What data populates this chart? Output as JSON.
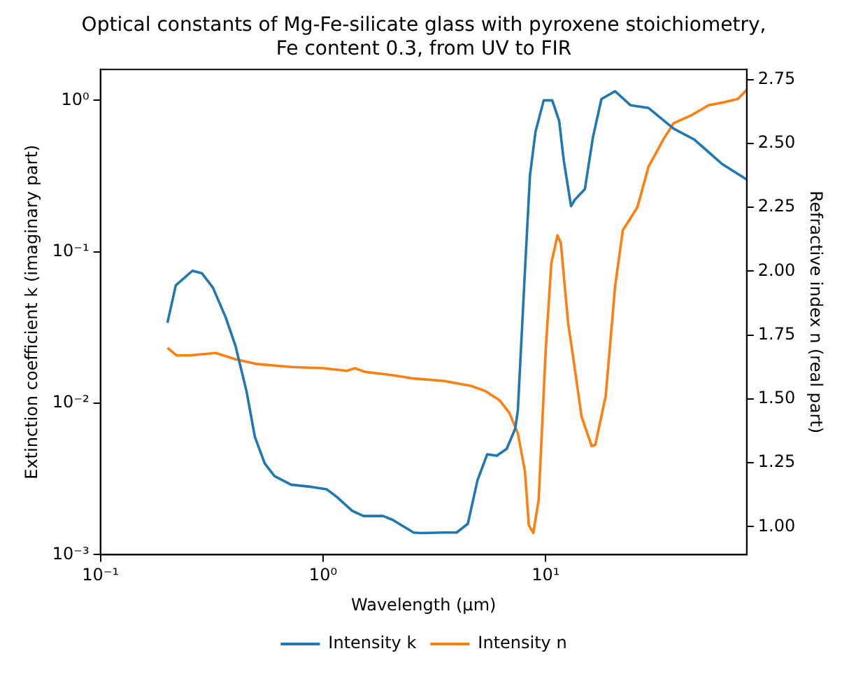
{
  "chart_data": {
    "type": "line",
    "title": "Optical constants of Mg-Fe-silicate glass with pyroxene stoichiometry, Fe content 0.3, from UV to FIR",
    "xlabel": "Wavelength (μm)",
    "ylabel": "Extinction coefficient k (imaginary part)",
    "y2label": "Refractive index n (real part)",
    "log": "xy",
    "grid": false,
    "legend": "bottom",
    "marker": "none",
    "line_style": "solid",
    "xlim": [
      0.1,
      80
    ],
    "xticks": [
      {
        "value": 0.1,
        "label": "10⁻¹"
      },
      {
        "value": 1,
        "label": "10⁰"
      },
      {
        "value": 10,
        "label": "10¹"
      }
    ],
    "ylim": [
      0.001,
      1.6
    ],
    "yticks": [
      {
        "value": 0.001,
        "label": "10⁻³"
      },
      {
        "value": 0.01,
        "label": "10⁻²"
      },
      {
        "value": 0.1,
        "label": "10⁻¹"
      },
      {
        "value": 1,
        "label": "10⁰"
      }
    ],
    "y2lim": [
      0.89,
      2.79
    ],
    "y2ticks": [
      {
        "value": 1,
        "label": "1.00"
      },
      {
        "value": 1.25,
        "label": "1.25"
      },
      {
        "value": 1.5,
        "label": "1.50"
      },
      {
        "value": 1.75,
        "label": "1.75"
      },
      {
        "value": 2,
        "label": "2.00"
      },
      {
        "value": 2.25,
        "label": "2.25"
      },
      {
        "value": 2.5,
        "label": "2.50"
      },
      {
        "value": 2.75,
        "label": "2.75"
      }
    ],
    "series": [
      {
        "name": "Intensity k",
        "color": "#1f77b4",
        "x": [
          0.2,
          0.218,
          0.259,
          0.286,
          0.32,
          0.365,
          0.404,
          0.453,
          0.494,
          0.547,
          0.605,
          0.718,
          0.891,
          1.04,
          1.155,
          1.35,
          1.52,
          1.86,
          2.05,
          2.55,
          2.74,
          3.5,
          3.98,
          4.47,
          4.94,
          5.46,
          6.03,
          6.68,
          7.3,
          7.5,
          8.07,
          8.5,
          9.0,
          9.8,
          10.7,
          11.5,
          12.06,
          13,
          13.5,
          15,
          16.3,
          17.8,
          20.5,
          24,
          29,
          37.6,
          46.6,
          62,
          80
        ],
        "values": [
          0.034,
          0.06,
          0.075,
          0.072,
          0.058,
          0.037,
          0.024,
          0.012,
          0.006,
          0.004,
          0.0033,
          0.0029,
          0.0028,
          0.0027,
          0.0024,
          0.00195,
          0.0018,
          0.0018,
          0.0017,
          0.0014,
          0.00139,
          0.0014,
          0.0014,
          0.0016,
          0.0031,
          0.0046,
          0.0045,
          0.005,
          0.0068,
          0.009,
          0.075,
          0.32,
          0.62,
          1.0,
          1.0,
          0.73,
          0.4,
          0.2,
          0.22,
          0.26,
          0.57,
          1.02,
          1.15,
          0.93,
          0.89,
          0.65,
          0.55,
          0.38,
          0.3
        ]
      },
      {
        "name": "Intensity n",
        "color": "#ff7f0e",
        "axis": "y2",
        "x": [
          0.2,
          0.22,
          0.25,
          0.33,
          0.404,
          0.5,
          0.72,
          1.0,
          1.28,
          1.39,
          1.54,
          2.0,
          2.55,
          3.5,
          4.66,
          5.38,
          6.2,
          6.87,
          7.5,
          8.07,
          8.4,
          8.8,
          9.3,
          10,
          10.6,
          11.3,
          11.7,
          12.6,
          13.3,
          14.5,
          16.1,
          16.7,
          18.6,
          20.5,
          22.2,
          25.8,
          29,
          34,
          37.6,
          45,
          54,
          62,
          73,
          80
        ],
        "values": [
          1.7,
          1.67,
          1.67,
          1.68,
          1.655,
          1.637,
          1.625,
          1.62,
          1.61,
          1.62,
          1.606,
          1.594,
          1.58,
          1.57,
          1.55,
          1.53,
          1.495,
          1.445,
          1.365,
          1.216,
          1.006,
          0.975,
          1.105,
          1.69,
          2.03,
          2.14,
          2.11,
          1.8,
          1.66,
          1.43,
          1.315,
          1.32,
          1.51,
          1.94,
          2.16,
          2.25,
          2.41,
          2.52,
          2.58,
          2.61,
          2.65,
          2.66,
          2.675,
          2.71
        ]
      }
    ]
  }
}
